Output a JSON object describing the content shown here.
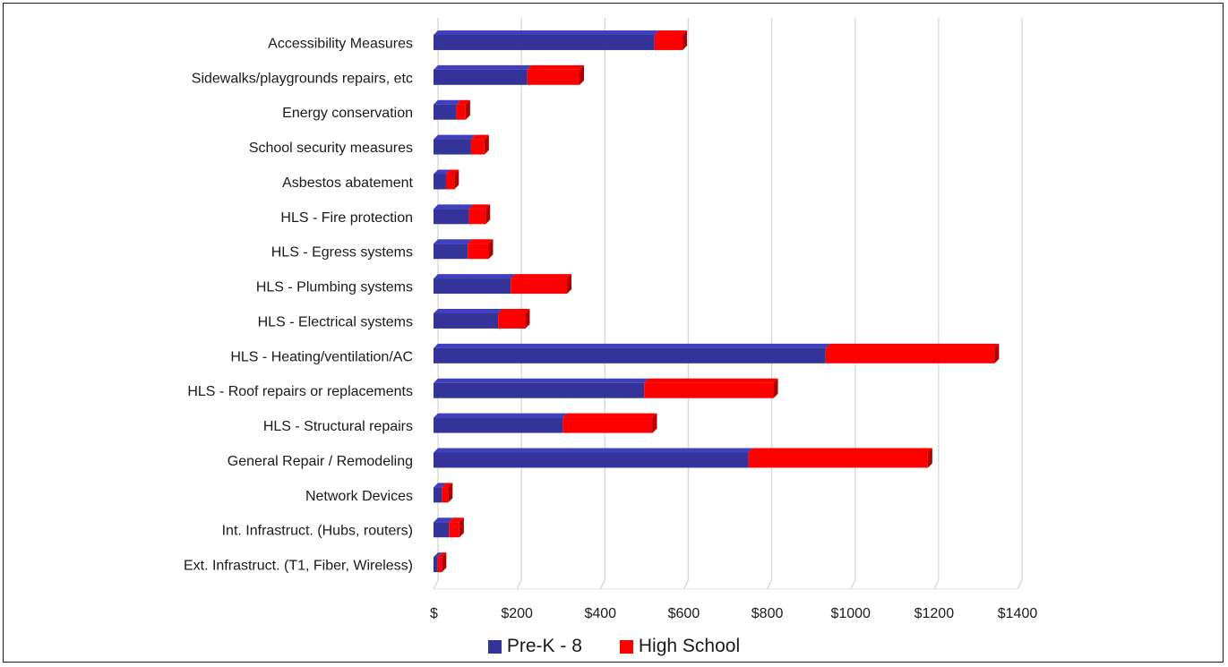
{
  "chart_data": {
    "type": "bar",
    "orientation": "horizontal",
    "stacked": true,
    "categories": [
      "Accessibility Measures",
      "Sidewalks/playgrounds repairs, etc",
      "Energy conservation",
      "School security measures",
      "Asbestos abatement",
      "HLS - Fire protection",
      "HLS - Egress systems",
      "HLS - Plumbing systems",
      "HLS - Electrical systems",
      "HLS - Heating/ventilation/AC",
      "HLS - Roof repairs or replacements",
      "HLS - Structural repairs",
      "General Repair / Remodeling",
      "Network Devices",
      "Int. Infrastruct. (Hubs, routers)",
      "Ext. Infrastruct. (T1, Fiber, Wireless)"
    ],
    "series": [
      {
        "name": "Pre-K - 8",
        "color": "#333399",
        "values": [
          530,
          225,
          55,
          90,
          30,
          85,
          82,
          185,
          155,
          940,
          505,
          310,
          755,
          20,
          37,
          10
        ]
      },
      {
        "name": "High School",
        "color": "#ff0000",
        "values": [
          67,
          125,
          22,
          32,
          20,
          40,
          50,
          135,
          65,
          405,
          310,
          215,
          430,
          15,
          25,
          10
        ]
      }
    ],
    "x_ticks": [
      "$",
      "$200",
      "$400",
      "$600",
      "$800",
      "$1000",
      "$1200",
      "$1400"
    ],
    "xlim": [
      0,
      1400
    ],
    "grid": true,
    "legend_position": "bottom",
    "title": "",
    "xlabel": "",
    "ylabel": ""
  }
}
